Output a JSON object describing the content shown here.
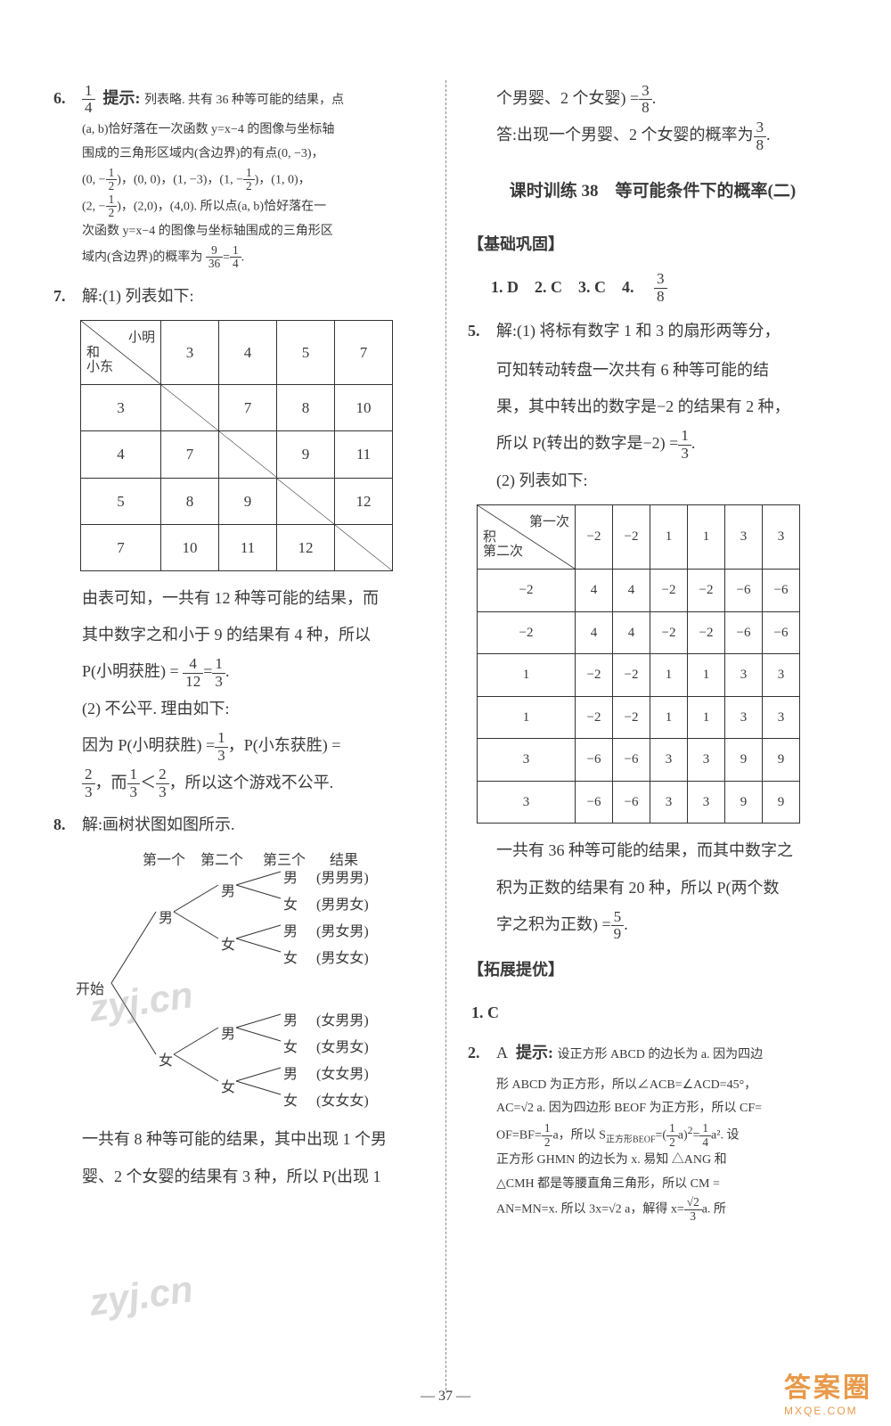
{
  "left": {
    "q6": {
      "label": "6.",
      "ans": "14",
      "hint_prefix": "提示:",
      "hint_l1": "列表略. 共有 36 种等可能的结果，点",
      "hint_l2": "(a, b)恰好落在一次函数 y=x−4 的图像与坐标轴",
      "hint_l3": "围成的三角形区域内(含边界)的有点(0, −3)，",
      "hint_l4a": "(0, −",
      "hint_l4b": ")，(0, 0)，(1, −3)，(1, −",
      "hint_l4c": ")，(1, 0)，",
      "hint_l5a": "(2, −",
      "hint_l5b": ")，(2,0)，(4,0). 所以点(a, b)恰好落在一",
      "hint_l6": "次函数 y=x−4 的图像与坐标轴围成的三角形区",
      "hint_l7a": "域内(含边界)的概率为",
      "hint_l7b": "."
    },
    "q7": {
      "label": "7.",
      "head": "解:(1) 列表如下:",
      "table": {
        "col_widths": [
          "90px",
          "65px",
          "65px",
          "65px",
          "65px"
        ],
        "diag_tl": "小明",
        "diag_mid": "和",
        "diag_bl": "小东",
        "cols": [
          "3",
          "4",
          "5",
          "7"
        ],
        "rows": [
          {
            "h": "3",
            "c": [
              "",
              "7",
              "8",
              "10"
            ]
          },
          {
            "h": "4",
            "c": [
              "7",
              "",
              "9",
              "11"
            ]
          },
          {
            "h": "5",
            "c": [
              "8",
              "9",
              "",
              "12"
            ]
          },
          {
            "h": "7",
            "c": [
              "10",
              "11",
              "12",
              ""
            ]
          }
        ]
      },
      "p1": "由表可知，一共有 12 种等可能的结果，而",
      "p2": "其中数字之和小于 9 的结果有 4 种，所以",
      "p3a": "P(小明获胜) =",
      "p3b": ".",
      "p4": "(2) 不公平. 理由如下:",
      "p5a": "因为 P(小明获胜) =",
      "p5b": "，P(小东获胜) =",
      "p6a": "，而",
      "p6b": "，所以这个游戏不公平."
    },
    "q8": {
      "label": "8.",
      "head": "解:画树状图如图所示.",
      "cols": [
        "第一个",
        "第二个",
        "第三个",
        "结果"
      ],
      "start": "开始",
      "m": "男",
      "f": "女",
      "res": [
        "(男男男)",
        "(男男女)",
        "(男女男)",
        "(男女女)",
        "(女男男)",
        "(女男女)",
        "(女女男)",
        "(女女女)"
      ],
      "p1": "一共有 8 种等可能的结果，其中出现 1 个男",
      "p2": "婴、2 个女婴的结果有 3 种，所以 P(出现 1"
    }
  },
  "right": {
    "top": {
      "l1a": "个男婴、2 个女婴) =",
      "l1b": ".",
      "l2a": "答:出现一个男婴、2 个女婴的概率为",
      "l2b": "."
    },
    "title": "课时训练 38　等可能条件下的概率(二)",
    "sec1": "【基础巩固】",
    "ans": {
      "a1": "1. D",
      "a2": "2. C",
      "a3": "3. C",
      "a4": "4."
    },
    "q5": {
      "label": "5.",
      "l1": "解:(1) 将标有数字 1 和 3 的扇形两等分，",
      "l2": "可知转动转盘一次共有 6 种等可能的结",
      "l3": "果，其中转出的数字是−2 的结果有 2 种，",
      "l4a": "所以 P(转出的数字是−2) =",
      "l4b": ".",
      "l5": "(2) 列表如下:",
      "table": {
        "diag_tl": "第一次",
        "diag_mid": "积",
        "diag_bl": "第二次",
        "cols": [
          "−2",
          "−2",
          "1",
          "1",
          "3",
          "3"
        ],
        "rows": [
          {
            "h": "−2",
            "c": [
              "4",
              "4",
              "−2",
              "−2",
              "−6",
              "−6"
            ]
          },
          {
            "h": "−2",
            "c": [
              "4",
              "4",
              "−2",
              "−2",
              "−6",
              "−6"
            ]
          },
          {
            "h": "1",
            "c": [
              "−2",
              "−2",
              "1",
              "1",
              "3",
              "3"
            ]
          },
          {
            "h": "1",
            "c": [
              "−2",
              "−2",
              "1",
              "1",
              "3",
              "3"
            ]
          },
          {
            "h": "3",
            "c": [
              "−6",
              "−6",
              "3",
              "3",
              "9",
              "9"
            ]
          },
          {
            "h": "3",
            "c": [
              "−6",
              "−6",
              "3",
              "3",
              "9",
              "9"
            ]
          }
        ]
      },
      "p1": "一共有 36 种等可能的结果，而其中数字之",
      "p2": "积为正数的结果有 20 种，所以 P(两个数",
      "p3a": "字之积为正数) =",
      "p3b": "."
    },
    "sec2": "【拓展提优】",
    "q1": "1. C",
    "q2": {
      "label": "2.",
      "ans": "A",
      "hint_prefix": "提示:",
      "l1": "设正方形 ABCD 的边长为 a. 因为四边",
      "l2": "形 ABCD 为正方形，所以∠ACB=∠ACD=45°，",
      "l3": "AC=√2 a. 因为四边形 BEOF 为正方形，所以 CF=",
      "l4a": "OF=BF=",
      "l4b": "a，所以 S",
      "l4sub": "正方形BEOF",
      "l4c": "=(",
      "l4d": "a)",
      "l4e": "=",
      "l4f": "a². 设",
      "l5": "正方形 GHMN 的边长为 x. 易知 △ANG 和",
      "l6": "△CMH 都是等腰直角三角形，所以 CM =",
      "l7a": "AN=MN=x. 所以 3x=√2 a，解得 x=",
      "l7b": "a. 所"
    }
  },
  "page_num": "— 37 —",
  "watermarks": {
    "w1": "zyj.cn",
    "w2": "zyj.cn"
  },
  "logo": {
    "top": "答案圈",
    "bottom": "MXQE.COM"
  }
}
